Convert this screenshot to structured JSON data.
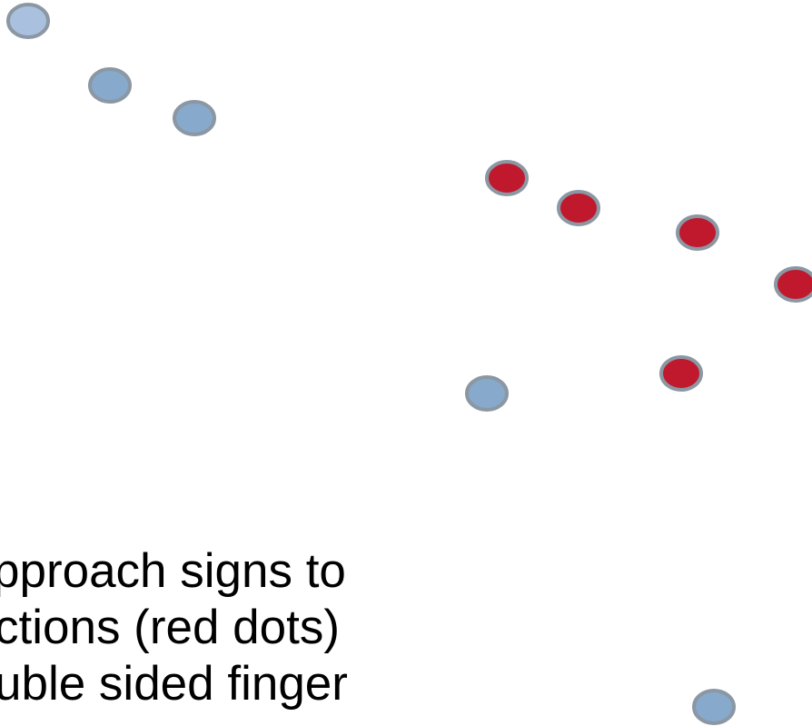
{
  "slide": {
    "caption_lines": [
      "pproach signs to",
      "ctions (red dots)",
      "uble sided finger"
    ]
  },
  "colors": {
    "blue_fill": "#87a9cc",
    "light_blue_fill": "#a9c0de",
    "red_fill": "#c0182d",
    "stroke": "#8b97a3"
  },
  "dots": [
    {
      "kind": "light-blue"
    },
    {
      "kind": "blue"
    },
    {
      "kind": "blue"
    },
    {
      "kind": "red"
    },
    {
      "kind": "red"
    },
    {
      "kind": "red"
    },
    {
      "kind": "red"
    },
    {
      "kind": "red"
    },
    {
      "kind": "blue"
    },
    {
      "kind": "blue"
    }
  ]
}
